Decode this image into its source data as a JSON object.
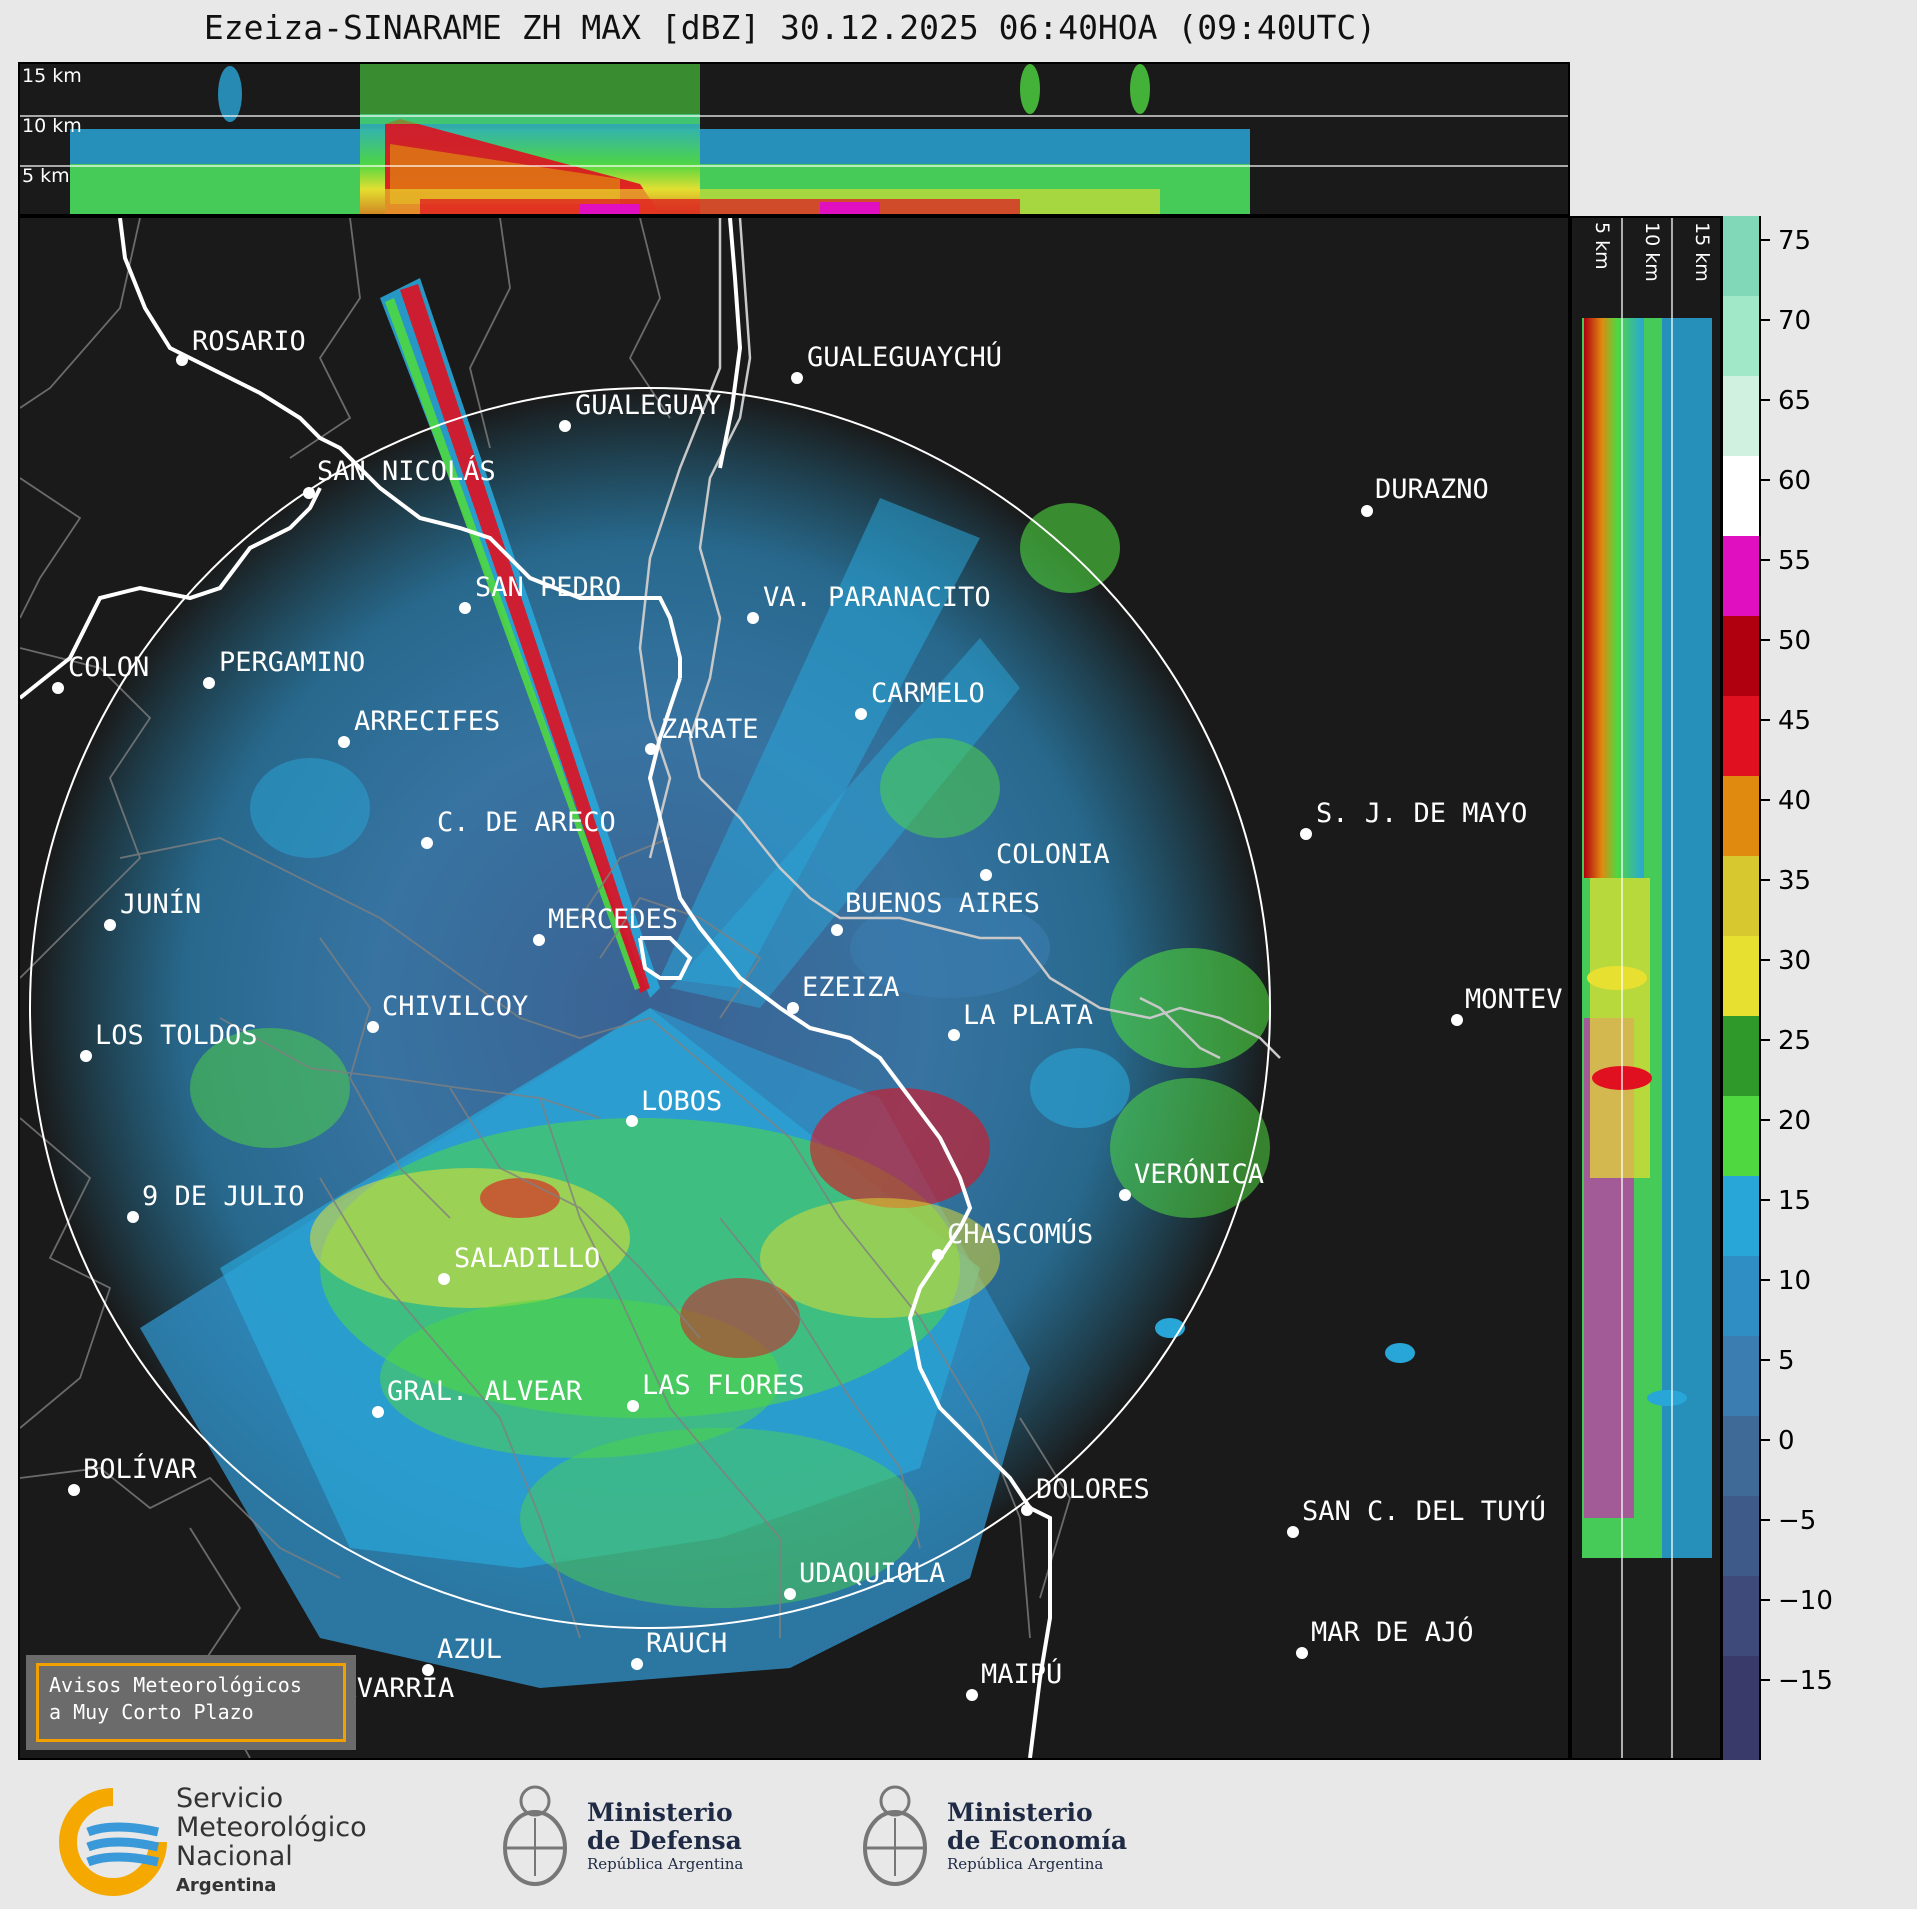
{
  "title": "Ezeiza-SINARAME ZH MAX [dBZ] 30.12.2025 06:40HOA (09:40UTC)",
  "top_panel": {
    "altitude_labels": [
      "15 km",
      "10 km",
      "5 km"
    ]
  },
  "side_panel": {
    "altitude_labels": [
      "5 km",
      "10 km",
      "15 km"
    ]
  },
  "colorbar": {
    "ticks": [
      "75",
      "70",
      "65",
      "60",
      "55",
      "50",
      "45",
      "40",
      "35",
      "30",
      "25",
      "20",
      "15",
      "10",
      "5",
      "0",
      "−5",
      "−10",
      "−15"
    ],
    "colors": {
      "neg15": "#3a3a6a",
      "neg10": "#3d4a7a",
      "neg5": "#3e5a88",
      "zero": "#3f6a98",
      "five": "#3b7db0",
      "ten": "#2f8ec4",
      "fifteen": "#29a6d8",
      "twenty": "#4fd840",
      "twentyfive": "#2f9a2a",
      "thirty": "#e8e030",
      "thirtyfive": "#d8c830",
      "forty": "#e08a10",
      "fortyfive": "#e01020",
      "fifty": "#b00010",
      "fiftyfive": "#e010c0",
      "sixty": "#ffffff",
      "sixtyfive": "#d0f0e0",
      "seventy": "#a0e8c8",
      "seventyfive": "#80d8b8"
    }
  },
  "cities": [
    "ROSARIO",
    "GUALEGUAYCHÚ",
    "GUALEGUAY",
    "SAN NICOLÁS",
    "DURAZNO",
    "SAN PEDRO",
    "VA. PARANACITO",
    "COLON",
    "PERGAMINO",
    "CARMELO",
    "ARRECIFES",
    "ZARATE",
    "S. J. DE MAYO",
    "C. DE ARECO",
    "COLONIA",
    "JUNÍN",
    "BUENOS AIRES",
    "MERCEDES",
    "EZEIZA",
    "CHIVILCOY",
    "MONTEV",
    "LA PLATA",
    "LOS TOLDOS",
    "LOBOS",
    "VERÓNICA",
    "9 DE JULIO",
    "CHASCOMÚS",
    "SALADILLO",
    "LAS FLORES",
    "GRAL. ALVEAR",
    "BOLÍVAR",
    "DOLORES",
    "SAN C. DEL TUYÚ",
    "UDAQUIOLA",
    "MAR DE AJÓ",
    "AZUL",
    "RAUCH",
    "MAIPÚ",
    "OLAVARRÍA"
  ],
  "notice": {
    "line1": "Avisos Meteorológicos",
    "line2": "a Muy Corto Plazo"
  },
  "footer": {
    "smn": {
      "line1": "Servicio",
      "line2": "Meteorológico",
      "line3": "Nacional",
      "line4": "Argentina"
    },
    "defensa": {
      "line1": "Ministerio",
      "line2": "de Defensa",
      "line3": "República Argentina"
    },
    "economia": {
      "line1": "Ministerio",
      "line2": "de Economía",
      "line3": "República Argentina"
    }
  }
}
